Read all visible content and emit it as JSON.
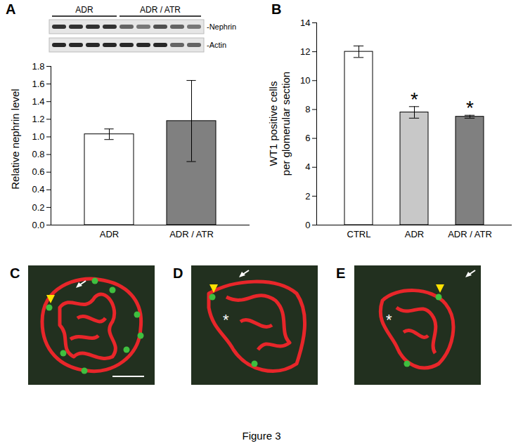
{
  "figure_caption": "Figure 3",
  "chart_data": [
    {
      "type": "bar",
      "title": "A",
      "categories": [
        "ADR",
        "ADR / ATR"
      ],
      "values": [
        1.03,
        1.18
      ],
      "errors": [
        0.06,
        0.46
      ],
      "colors": [
        "#ffffff",
        "#808080"
      ],
      "y_label": "Relative nephrin level",
      "ylim": [
        0,
        1.8
      ],
      "yticks": [
        {
          "value": 0,
          "label": "0.0"
        },
        0.2,
        0.4,
        0.6,
        0.8,
        {
          "value": 1,
          "label": "1.0"
        },
        1.2,
        1.4,
        1.6,
        1.8
      ]
    },
    {
      "type": "bar",
      "title": "B",
      "categories": [
        "CTRL",
        "ADR",
        "ADR / ATR"
      ],
      "values": [
        12.0,
        7.8,
        7.5
      ],
      "errors": [
        0.4,
        0.4,
        0.1
      ],
      "colors": [
        "#ffffff",
        "#c8c8c8",
        "#808080"
      ],
      "y_label": "WT1 positive cells\nper glomerular section",
      "ylim": [
        0,
        14
      ],
      "yticks": [
        0,
        2,
        4,
        6,
        8,
        10,
        12,
        14
      ],
      "annotations": [
        {
          "category": "ADR",
          "text": "*"
        },
        {
          "category": "ADR / ATR",
          "text": "*"
        }
      ]
    }
  ],
  "blot": {
    "groups": [
      {
        "label": "ADR",
        "lanes": 4
      },
      {
        "label": "ADR / ATR",
        "lanes": 5
      }
    ],
    "bands": [
      "-Nephrin",
      "-Actin"
    ]
  },
  "micrographs": [
    {
      "panel": "C",
      "annotations": []
    },
    {
      "panel": "D",
      "annotations": [
        "*"
      ]
    },
    {
      "panel": "E",
      "annotations": [
        "*"
      ]
    }
  ]
}
